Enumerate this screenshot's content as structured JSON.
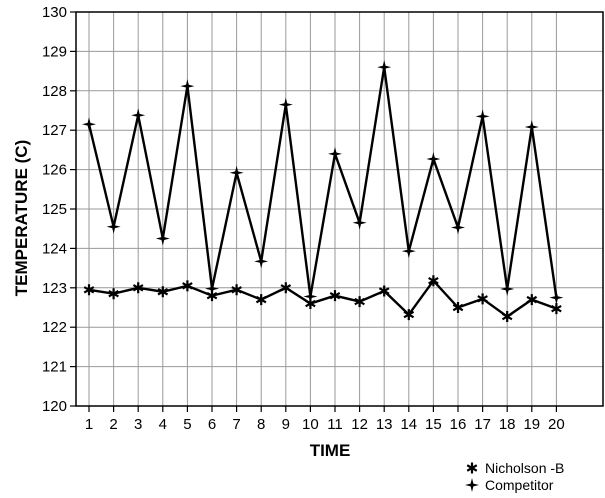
{
  "chart_data": {
    "type": "line",
    "title": "",
    "xlabel": "TIME",
    "ylabel": "TEMPERATURE (C)",
    "x": [
      1,
      2,
      3,
      4,
      5,
      6,
      7,
      8,
      9,
      10,
      11,
      12,
      13,
      14,
      15,
      16,
      17,
      18,
      19,
      20
    ],
    "ylim": [
      120,
      130
    ],
    "yticks": [
      120,
      121,
      122,
      123,
      124,
      125,
      126,
      127,
      128,
      129,
      130
    ],
    "grid": true,
    "legend_position": "bottom-right",
    "series": [
      {
        "name": "Nicholson -B",
        "marker": "asterisk",
        "values": [
          122.95,
          122.85,
          123.0,
          122.9,
          123.05,
          122.8,
          122.95,
          122.7,
          123.0,
          122.6,
          122.8,
          122.65,
          122.92,
          122.32,
          123.18,
          122.5,
          122.72,
          122.27,
          122.7,
          122.47
        ]
      },
      {
        "name": "Competitor",
        "marker": "star",
        "values": [
          127.15,
          124.55,
          127.38,
          124.25,
          128.12,
          122.98,
          125.92,
          123.67,
          127.65,
          122.78,
          126.4,
          124.65,
          128.6,
          123.93,
          126.27,
          124.53,
          127.35,
          122.97,
          127.08,
          122.75
        ]
      }
    ]
  }
}
